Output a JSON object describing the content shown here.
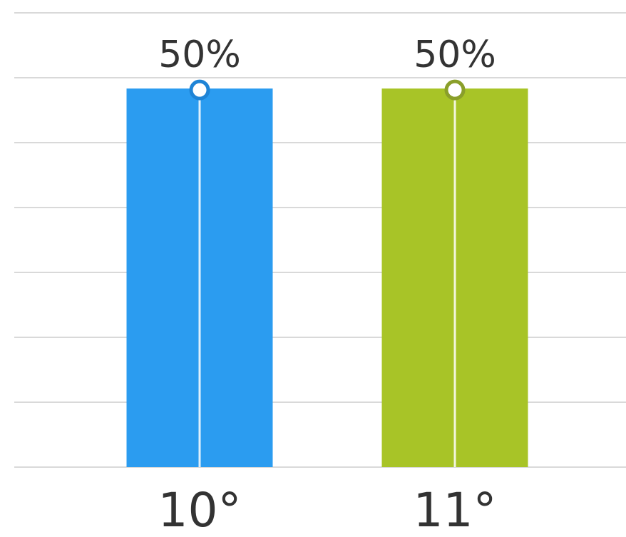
{
  "chart_data": {
    "type": "bar",
    "categories": [
      "10°",
      "11°"
    ],
    "values": [
      50,
      50
    ],
    "value_labels": [
      "50%",
      "50%"
    ],
    "colors": [
      "#2b9cf0",
      "#a8c427"
    ],
    "marker_colors": [
      "#1f84d6",
      "#8a9f2a"
    ],
    "ylim": [
      0,
      60
    ],
    "grid": true,
    "title": "",
    "xlabel": "",
    "ylabel": ""
  }
}
